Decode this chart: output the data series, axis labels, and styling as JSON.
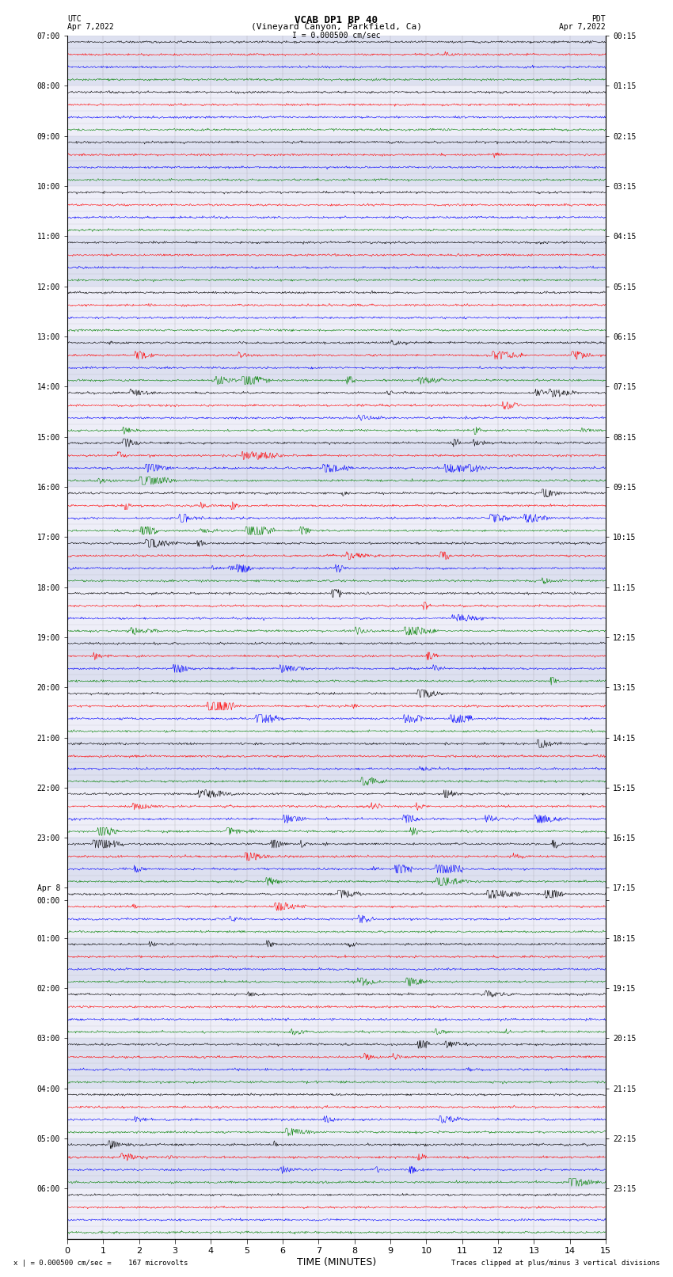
{
  "title_line1": "VCAB DP1 BP 40",
  "title_line2": "(Vineyard Canyon, Parkfield, Ca)",
  "scale_label": "I = 0.000500 cm/sec",
  "left_label": "UTC",
  "left_date": "Apr 7,2022",
  "right_label": "PDT",
  "right_date": "Apr 7,2022",
  "xlabel": "TIME (MINUTES)",
  "footer_left": "x | = 0.000500 cm/sec =    167 microvolts",
  "footer_right": "Traces clipped at plus/minus 3 vertical divisions",
  "xlim": [
    0,
    15
  ],
  "xticks": [
    0,
    1,
    2,
    3,
    4,
    5,
    6,
    7,
    8,
    9,
    10,
    11,
    12,
    13,
    14,
    15
  ],
  "utc_times": [
    "07:00",
    "",
    "",
    "",
    "08:00",
    "",
    "",
    "",
    "09:00",
    "",
    "",
    "",
    "10:00",
    "",
    "",
    "",
    "11:00",
    "",
    "",
    "",
    "12:00",
    "",
    "",
    "",
    "13:00",
    "",
    "",
    "",
    "14:00",
    "",
    "",
    "",
    "15:00",
    "",
    "",
    "",
    "16:00",
    "",
    "",
    "",
    "17:00",
    "",
    "",
    "",
    "18:00",
    "",
    "",
    "",
    "19:00",
    "",
    "",
    "",
    "20:00",
    "",
    "",
    "",
    "21:00",
    "",
    "",
    "",
    "22:00",
    "",
    "",
    "",
    "23:00",
    "",
    "",
    "",
    "Apr 8",
    "00:00",
    "",
    "",
    "01:00",
    "",
    "",
    "",
    "02:00",
    "",
    "",
    "",
    "03:00",
    "",
    "",
    "",
    "04:00",
    "",
    "",
    "",
    "05:00",
    "",
    "",
    "",
    "06:00",
    "",
    "",
    ""
  ],
  "pdt_times": [
    "00:15",
    "",
    "",
    "",
    "01:15",
    "",
    "",
    "",
    "02:15",
    "",
    "",
    "",
    "03:15",
    "",
    "",
    "",
    "04:15",
    "",
    "",
    "",
    "05:15",
    "",
    "",
    "",
    "06:15",
    "",
    "",
    "",
    "07:15",
    "",
    "",
    "",
    "08:15",
    "",
    "",
    "",
    "09:15",
    "",
    "",
    "",
    "10:15",
    "",
    "",
    "",
    "11:15",
    "",
    "",
    "",
    "12:15",
    "",
    "",
    "",
    "13:15",
    "",
    "",
    "",
    "14:15",
    "",
    "",
    "",
    "15:15",
    "",
    "",
    "",
    "16:15",
    "",
    "",
    "",
    "17:15",
    "",
    "",
    "",
    "18:15",
    "",
    "",
    "",
    "19:15",
    "",
    "",
    "",
    "20:15",
    "",
    "",
    "",
    "21:15",
    "",
    "",
    "",
    "22:15",
    "",
    "",
    "",
    "23:15",
    "",
    "",
    ""
  ],
  "colors": [
    "black",
    "red",
    "blue",
    "green"
  ],
  "n_rows": 96,
  "n_traces_per_hour": 4,
  "bg_color": "#ffffff",
  "trace_bg_color": "#e8e8f8",
  "amplitude_scale": 0.35,
  "noise_level": 0.04,
  "seed": 42
}
